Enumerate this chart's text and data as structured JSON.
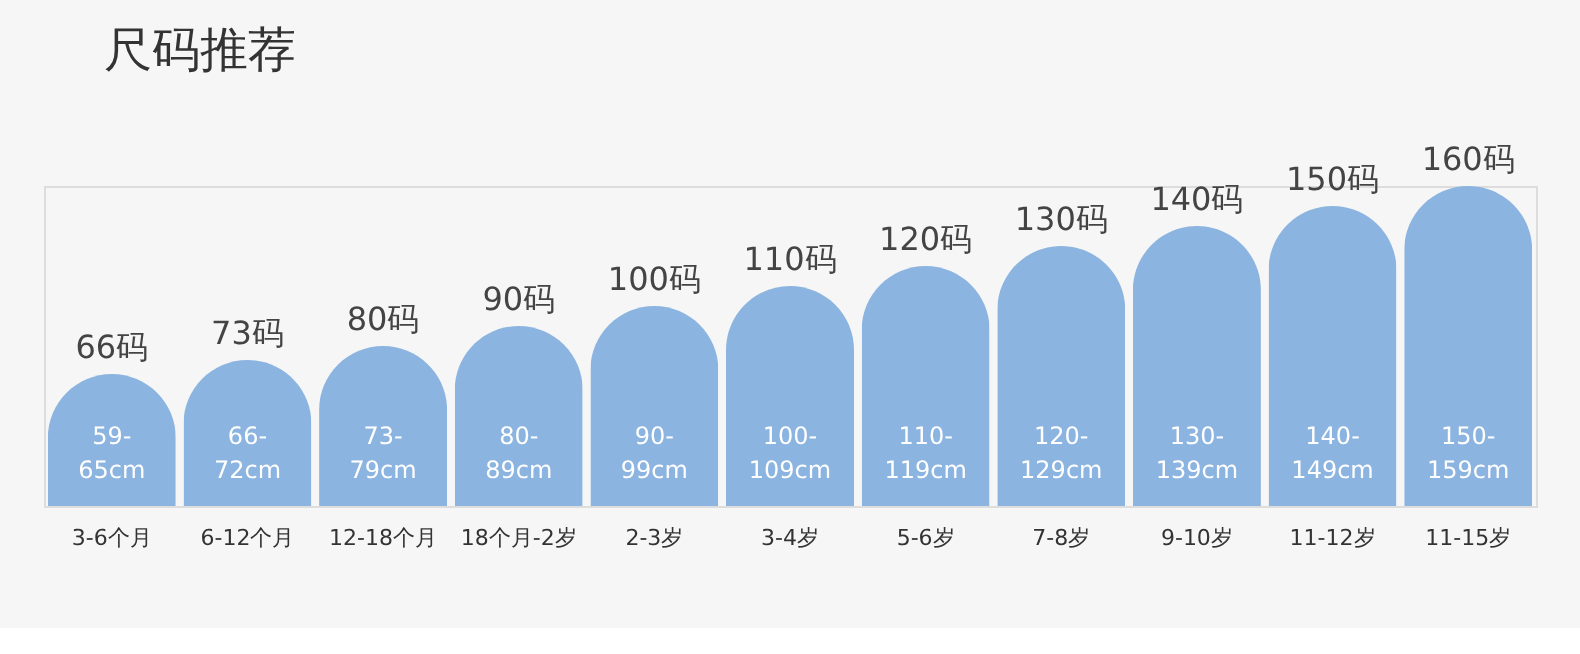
{
  "chart_data": {
    "type": "bar",
    "title": "尺码推荐",
    "color": "#8cb4e0",
    "ylim": [
      0,
      160
    ],
    "tick_labels": "x",
    "categories": [
      "3-6个月",
      "6-12个月",
      "12-18个月",
      "18个月-2岁",
      "2-3岁",
      "3-4岁",
      "5-6岁",
      "7-8岁",
      "9-10岁",
      "11-12岁",
      "11-15岁"
    ],
    "values": [
      66,
      73,
      80,
      90,
      100,
      110,
      120,
      130,
      140,
      150,
      160
    ],
    "value_labels": [
      "66码",
      "73码",
      "80码",
      "90码",
      "100码",
      "110码",
      "120码",
      "130码",
      "140码",
      "150码",
      "160码"
    ],
    "annotations": [
      "59-65cm",
      "66-72cm",
      "73-79cm",
      "80-89cm",
      "90-99cm",
      "100-109cm",
      "110-119cm",
      "120-129cm",
      "130-139cm",
      "140-149cm",
      "150-159cm"
    ]
  }
}
